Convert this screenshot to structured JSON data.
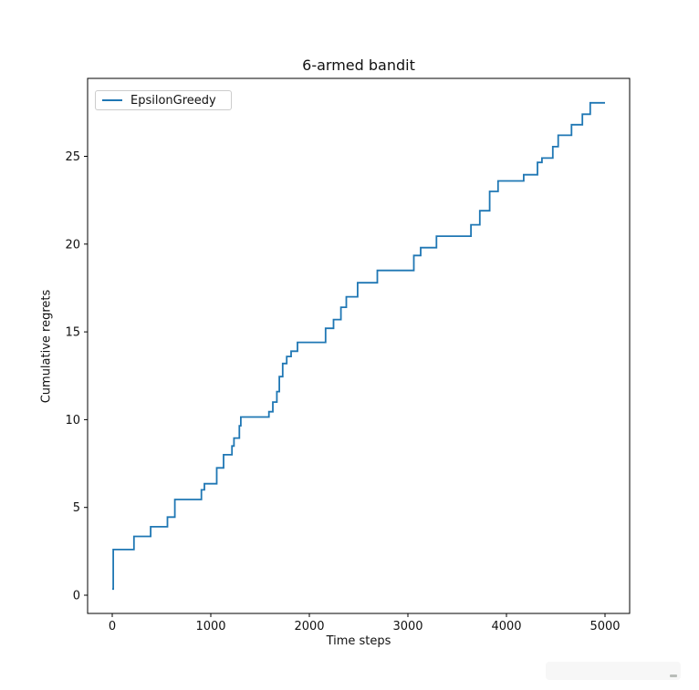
{
  "figure": {
    "title": "6-armed bandit",
    "xlabel": "Time steps",
    "ylabel": "Cumulative regrets",
    "legend": {
      "entries": [
        {
          "label": "EpsilonGreedy",
          "color": "#1f77b4"
        }
      ],
      "position": "upper left"
    }
  },
  "chart_data": {
    "type": "line",
    "subtype": "step-post",
    "title": "6-armed bandit",
    "xlabel": "Time steps",
    "ylabel": "Cumulative regrets",
    "grid": false,
    "legend_position": "upper left",
    "x_ticks": [
      0,
      1000,
      2000,
      3000,
      4000,
      5000
    ],
    "y_ticks": [
      0,
      5,
      10,
      15,
      20,
      25
    ],
    "xlim": [
      -250,
      5250
    ],
    "ylim": [
      -1.04,
      29.44
    ],
    "axis_color": "#000000",
    "series": [
      {
        "name": "EpsilonGreedy",
        "color": "#1f77b4",
        "x": [
          0,
          10,
          220,
          390,
          560,
          635,
          905,
          935,
          1060,
          1130,
          1215,
          1235,
          1290,
          1305,
          1590,
          1630,
          1670,
          1695,
          1730,
          1770,
          1815,
          1880,
          2165,
          2245,
          2320,
          2375,
          2490,
          2690,
          3060,
          3130,
          3290,
          3640,
          3730,
          3830,
          3915,
          4175,
          4315,
          4360,
          4470,
          4525,
          4660,
          4770,
          4850,
          5000
        ],
        "y": [
          0.35,
          2.6,
          3.35,
          3.9,
          4.45,
          5.45,
          6.0,
          6.35,
          7.25,
          8.0,
          8.5,
          8.95,
          9.65,
          10.15,
          10.45,
          11.0,
          11.6,
          12.45,
          13.2,
          13.6,
          13.9,
          14.4,
          15.2,
          15.7,
          16.4,
          17.0,
          17.8,
          18.5,
          19.35,
          19.8,
          20.45,
          21.1,
          21.9,
          23.0,
          23.6,
          23.95,
          24.65,
          24.9,
          25.55,
          26.2,
          26.8,
          27.4,
          28.05,
          28.05
        ]
      }
    ]
  }
}
